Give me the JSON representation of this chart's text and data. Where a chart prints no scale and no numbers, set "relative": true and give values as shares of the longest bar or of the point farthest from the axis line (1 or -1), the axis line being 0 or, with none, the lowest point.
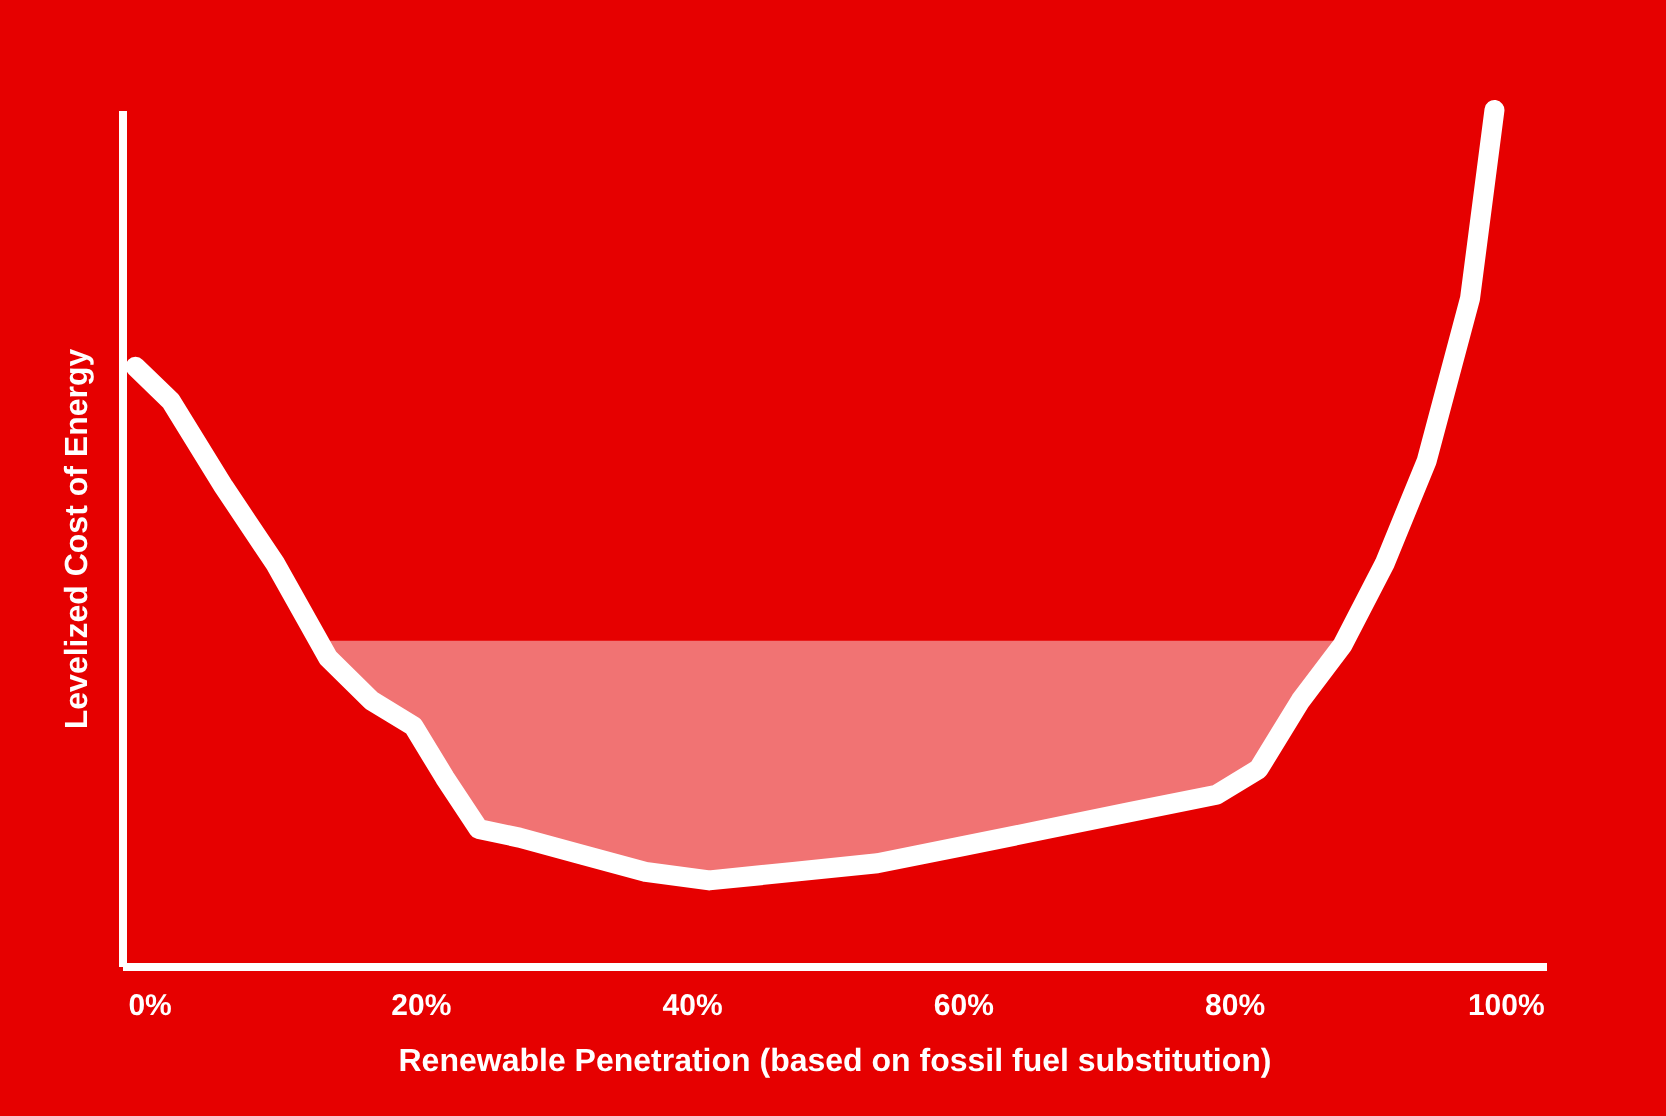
{
  "chart_data": {
    "type": "line",
    "relative": true,
    "xlabel": "Renewable Penetration (based on fossil fuel substitution)",
    "ylabel": "Levelized Cost of Energy",
    "xlim": [
      -2,
      103
    ],
    "xticks": [
      {
        "value": 0,
        "label": "0%"
      },
      {
        "value": 20,
        "label": "20%"
      },
      {
        "value": 40,
        "label": "40%"
      },
      {
        "value": 60,
        "label": "60%"
      },
      {
        "value": 80,
        "label": "80%"
      },
      {
        "value": 100,
        "label": "100%"
      }
    ],
    "tick_labels": "x",
    "grid": false,
    "legend": false,
    "marker": "none",
    "line_style": "solid",
    "series": [
      {
        "color": "#ffffff",
        "x": [
          -1,
          1.6,
          5.5,
          9.3,
          13.2,
          16.4,
          19.5,
          21.8,
          24.3,
          27.3,
          31.9,
          36.6,
          41.3,
          47.5,
          53.7,
          60,
          66.2,
          72.4,
          78.7,
          81.8,
          84.9,
          88,
          91.1,
          94.2,
          97.4,
          99.2
        ],
        "values": [
          0.7,
          0.66,
          0.56,
          0.47,
          0.36,
          0.31,
          0.28,
          0.22,
          0.16,
          0.15,
          0.13,
          0.11,
          0.1,
          0.11,
          0.12,
          0.14,
          0.16,
          0.18,
          0.2,
          0.23,
          0.31,
          0.375,
          0.47,
          0.59,
          0.78,
          1.0
        ],
        "lower": [
          null,
          null,
          null,
          null,
          0.36,
          0.31,
          0.28,
          0.22,
          0.16,
          0.15,
          0.13,
          0.11,
          0.1,
          0.11,
          0.12,
          0.14,
          0.16,
          0.18,
          0.2,
          0.23,
          0.31,
          0.375,
          null,
          null,
          null,
          null
        ],
        "upper": [
          null,
          null,
          null,
          null,
          0.38,
          0.38,
          0.38,
          0.38,
          0.38,
          0.38,
          0.38,
          0.38,
          0.38,
          0.38,
          0.38,
          0.38,
          0.38,
          0.38,
          0.38,
          0.38,
          0.38,
          0.38,
          null,
          null,
          null,
          null
        ]
      }
    ]
  }
}
